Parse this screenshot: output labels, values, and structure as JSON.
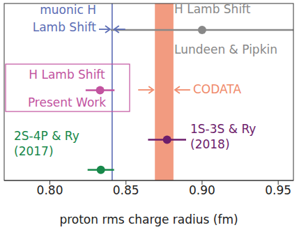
{
  "chart_data": {
    "type": "scatter",
    "xlabel": "proton rms charge radius (fm)",
    "xlim": [
      0.77,
      0.96
    ],
    "xticks": [
      {
        "value": 0.8,
        "label": "0.80"
      },
      0.85,
      {
        "value": 0.9,
        "label": "0.90"
      },
      0.95
    ],
    "tick_labels": "x",
    "series": [
      {
        "name": "H Lamb Shift\nLundeen & Pipkin",
        "color": "#888888",
        "values": [
          0.9
        ],
        "error": [
          0.06
        ]
      },
      {
        "name": "H Lamb Shift\nPresent Work",
        "color": "#c2539f",
        "values": [
          0.833
        ],
        "error": [
          0.0095
        ]
      },
      {
        "name": "1S-3S & Ry\n(2018)",
        "color": "#6d1d6b",
        "values": [
          0.877
        ],
        "error": [
          0.0125
        ]
      },
      {
        "name": "2S-4P & Ry\n(2017)",
        "color": "#17884a",
        "values": [
          0.8335
        ],
        "error": [
          0.0087
        ]
      }
    ],
    "bands": [
      {
        "name": "muonic H\nLamb Shift",
        "color": "#5b6db5",
        "value": 0.8409,
        "error": 0.0004
      },
      {
        "name": "CODATA",
        "color": "#f08a6a",
        "value": 0.8751,
        "error": 0.0061
      }
    ]
  }
}
